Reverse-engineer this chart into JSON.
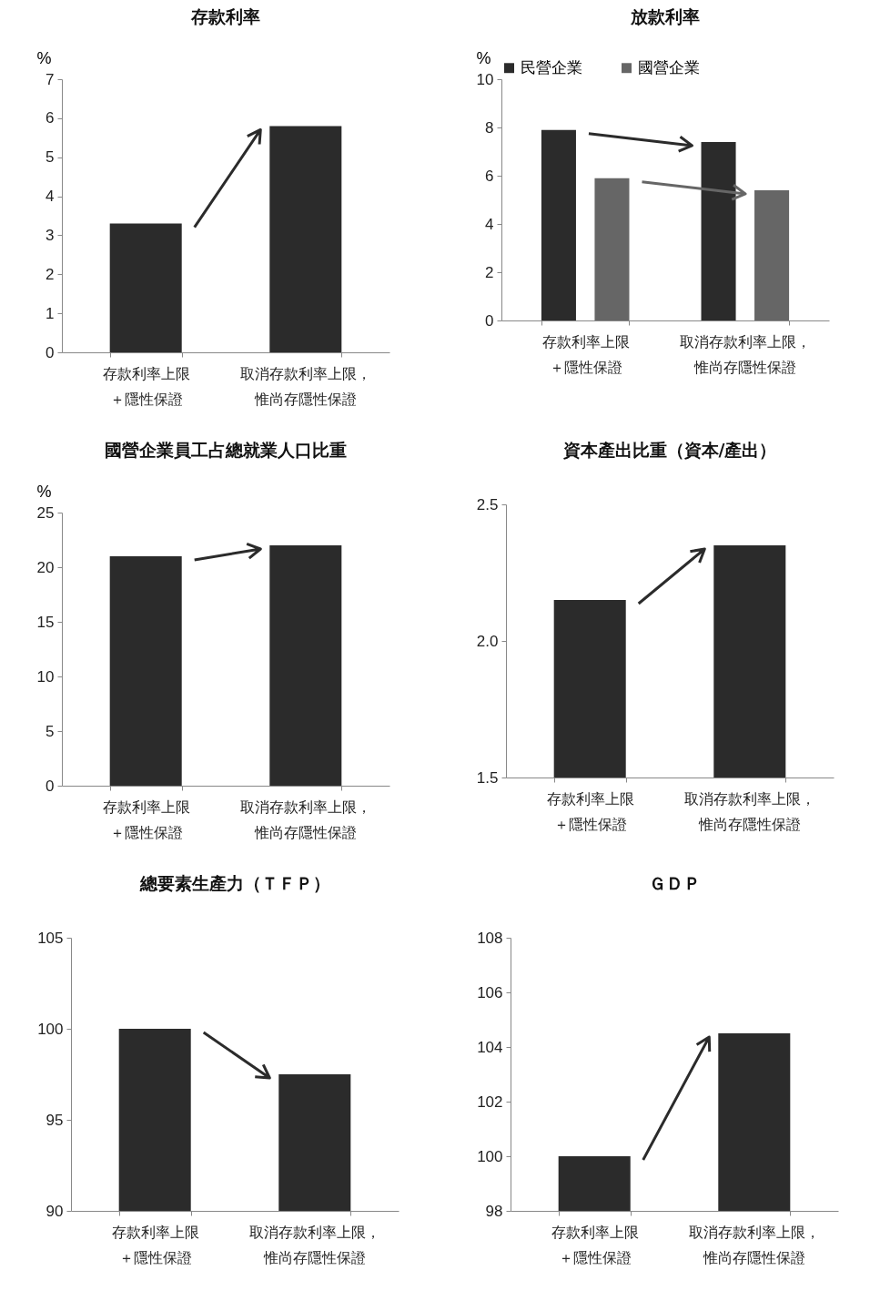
{
  "chart_data": [
    {
      "type": "bar",
      "title": "存款利率",
      "ylabel": "%",
      "categories": [
        "存款利率上限＋隱性保證",
        "取消存款利率上限，惟尚存隱性保證"
      ],
      "values": [
        3.3,
        5.8
      ],
      "color": "#2b2b2b",
      "ylim": [
        0,
        7
      ],
      "yticks": [
        0,
        1,
        2,
        3,
        4,
        5,
        6,
        7
      ],
      "grid": false
    },
    {
      "type": "bar",
      "title": "放款利率",
      "ylabel": "%",
      "categories": [
        "存款利率上限＋隱性保證",
        "取消存款利率上限，惟尚存隱性保證"
      ],
      "series": [
        {
          "name": "民營企業",
          "color": "#2b2b2b",
          "values": [
            7.9,
            7.4
          ]
        },
        {
          "name": "國營企業",
          "color": "#666666",
          "values": [
            5.9,
            5.4
          ]
        }
      ],
      "ylim": [
        0,
        10
      ],
      "yticks": [
        0,
        2,
        4,
        6,
        8,
        10
      ],
      "grid": false,
      "legend": "top"
    },
    {
      "type": "bar",
      "title": "國營企業員工占總就業人口比重",
      "ylabel": "%",
      "categories": [
        "存款利率上限＋隱性保證",
        "取消存款利率上限，惟尚存隱性保證"
      ],
      "values": [
        21,
        22
      ],
      "color": "#2b2b2b",
      "ylim": [
        0,
        25
      ],
      "yticks": [
        0,
        5,
        10,
        15,
        20,
        25
      ],
      "grid": false
    },
    {
      "type": "bar",
      "title": "資本產出比重（資本/產出）",
      "categories": [
        "存款利率上限＋隱性保證",
        "取消存款利率上限，惟尚存隱性保證"
      ],
      "values": [
        2.15,
        2.35
      ],
      "color": "#2b2b2b",
      "ylim": [
        1.5,
        2.5
      ],
      "yticks": [
        1.5,
        {
          "value": 2,
          "label": "2.0"
        },
        2.5
      ],
      "grid": false
    },
    {
      "type": "bar",
      "title": "總要素生產力（ＴＦＰ）",
      "categories": [
        "存款利率上限＋隱性保證",
        "取消存款利率上限，惟尚存隱性保證"
      ],
      "values": [
        100,
        97.5
      ],
      "color": "#2b2b2b",
      "ylim": [
        90,
        105
      ],
      "yticks": [
        90,
        95,
        100,
        105
      ],
      "grid": false
    },
    {
      "type": "bar",
      "title": "ＧＤＰ",
      "categories": [
        "存款利率上限＋隱性保證",
        "取消存款利率上限，惟尚存隱性保證"
      ],
      "values": [
        100,
        104.5
      ],
      "color": "#2b2b2b",
      "ylim": [
        98,
        108
      ],
      "yticks": [
        98,
        100,
        102,
        104,
        106,
        108
      ],
      "grid": false
    }
  ]
}
